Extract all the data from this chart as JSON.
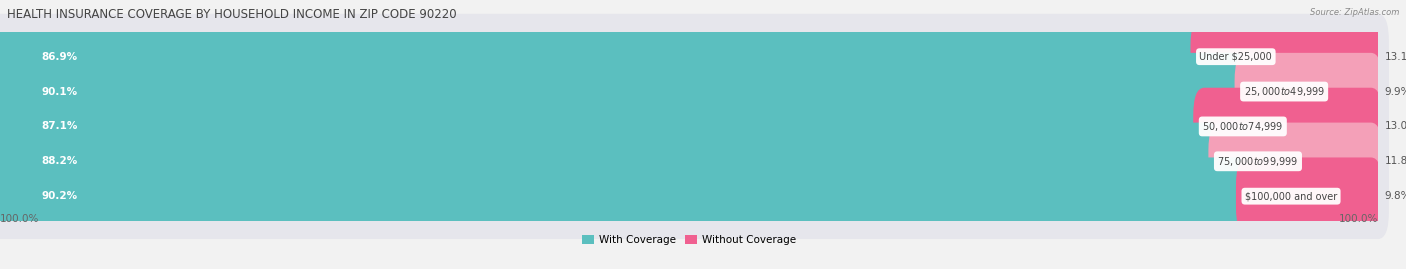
{
  "title": "HEALTH INSURANCE COVERAGE BY HOUSEHOLD INCOME IN ZIP CODE 90220",
  "source": "Source: ZipAtlas.com",
  "categories": [
    "Under $25,000",
    "$25,000 to $49,999",
    "$50,000 to $74,999",
    "$75,000 to $99,999",
    "$100,000 and over"
  ],
  "with_coverage": [
    86.9,
    90.1,
    87.1,
    88.2,
    90.2
  ],
  "without_coverage": [
    13.1,
    9.9,
    13.0,
    11.8,
    9.8
  ],
  "color_with": "#5bbfbf",
  "color_without_dark": "#f06090",
  "color_without_light": "#f4a0b8",
  "background_color": "#f2f2f2",
  "row_bg_color": "#e4e4ea",
  "title_fontsize": 8.5,
  "label_fontsize": 7.5,
  "cat_fontsize": 7.0,
  "legend_fontsize": 7.5,
  "x_left_label": "100.0%",
  "x_right_label": "100.0%"
}
